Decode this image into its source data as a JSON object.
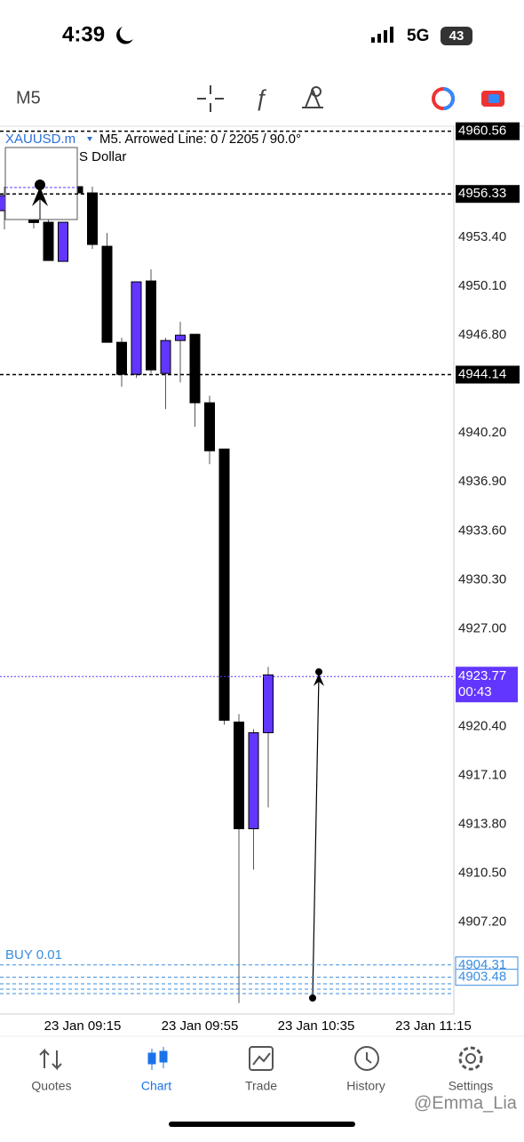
{
  "status_bar": {
    "time": "4:39",
    "network": "5G",
    "battery": "43"
  },
  "toolbar": {
    "timeframe": "M5"
  },
  "chart_data": {
    "type": "candlestick",
    "symbol": "XAUUSD.m",
    "info": "M5. Arrowed Line: 0 / 2205 / 90.0°",
    "subtitle": "S Dollar",
    "ylim": [
      4901.0,
      4960.9
    ],
    "yticks": [
      {
        "value": 4953.4,
        "label": "4953.40"
      },
      {
        "value": 4950.1,
        "label": "4950.10"
      },
      {
        "value": 4946.8,
        "label": "4946.80"
      },
      {
        "value": 4940.2,
        "label": "4940.20"
      },
      {
        "value": 4936.9,
        "label": "4936.90"
      },
      {
        "value": 4933.6,
        "label": "4933.60"
      },
      {
        "value": 4930.3,
        "label": "4930.30"
      },
      {
        "value": 4927.0,
        "label": "4927.00"
      },
      {
        "value": 4920.4,
        "label": "4920.40"
      },
      {
        "value": 4917.1,
        "label": "4917.10"
      },
      {
        "value": 4913.8,
        "label": "4913.80"
      },
      {
        "value": 4910.5,
        "label": "4910.50"
      },
      {
        "value": 4907.2,
        "label": "4907.20"
      }
    ],
    "x_labels": [
      "23 Jan 09:15",
      "23 Jan 09:55",
      "23 Jan 10:35",
      "23 Jan 11:15"
    ],
    "up_color": "#6236ff",
    "down_color": "#000000",
    "candles": [
      {
        "open": 4955.2,
        "high": 4956.82,
        "low": 4953.94,
        "close": 4956.22
      },
      {
        "open": 4956.2,
        "high": 4956.8,
        "low": 4955.0,
        "close": 4955.6
      },
      {
        "open": 4955.6,
        "high": 4956.0,
        "low": 4954.0,
        "close": 4954.4
      },
      {
        "open": 4954.42,
        "high": 4954.72,
        "low": 4951.84,
        "close": 4951.84
      },
      {
        "open": 4951.78,
        "high": 4954.42,
        "low": 4951.78,
        "close": 4954.42
      },
      {
        "open": 4956.82,
        "high": 4956.82,
        "low": 4956.4,
        "close": 4956.4
      },
      {
        "open": 4956.4,
        "high": 4956.82,
        "low": 4952.62,
        "close": 4952.92
      },
      {
        "open": 4952.8,
        "high": 4953.7,
        "low": 4946.32,
        "close": 4946.32
      },
      {
        "open": 4946.32,
        "high": 4946.62,
        "low": 4943.32,
        "close": 4944.16
      },
      {
        "open": 4944.16,
        "high": 4950.4,
        "low": 4943.92,
        "close": 4950.4
      },
      {
        "open": 4950.46,
        "high": 4951.24,
        "low": 4944.22,
        "close": 4944.46
      },
      {
        "open": 4944.22,
        "high": 4946.62,
        "low": 4941.82,
        "close": 4946.44
      },
      {
        "open": 4946.44,
        "high": 4947.7,
        "low": 4943.62,
        "close": 4946.8
      },
      {
        "open": 4946.86,
        "high": 4946.86,
        "low": 4940.62,
        "close": 4942.24
      },
      {
        "open": 4942.24,
        "high": 4942.72,
        "low": 4938.1,
        "close": 4939.0
      },
      {
        "open": 4939.12,
        "high": 4939.12,
        "low": 4920.52,
        "close": 4920.82
      },
      {
        "open": 4920.7,
        "high": 4921.24,
        "low": 4901.74,
        "close": 4913.5
      },
      {
        "open": 4913.5,
        "high": 4920.22,
        "low": 4910.74,
        "close": 4919.98
      },
      {
        "open": 4919.98,
        "high": 4924.42,
        "low": 4914.94,
        "close": 4923.88
      }
    ],
    "price_lines": [
      4960.56,
      4956.33,
      4944.14
    ],
    "current_price": {
      "value": 4923.77,
      "timer": "00:43"
    },
    "order_label": "BUY 0.01",
    "order_lines": [
      4904.31,
      4903.48
    ]
  },
  "tab_bar": {
    "tabs": [
      "Quotes",
      "Chart",
      "Trade",
      "History",
      "Settings"
    ],
    "active": 1
  },
  "watermark": "@Emma_Lia"
}
